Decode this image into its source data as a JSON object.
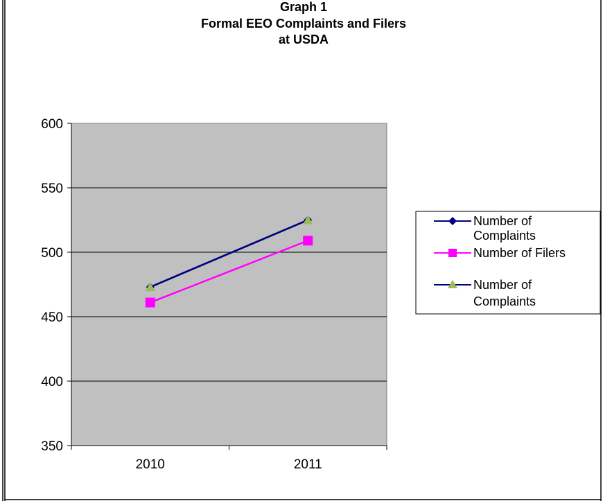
{
  "chart_data": {
    "type": "line",
    "title_lines": [
      "Graph 1",
      "Formal EEO Complaints and Filers",
      "at USDA"
    ],
    "categories": [
      "2010",
      "2011"
    ],
    "ylim": [
      350,
      600
    ],
    "yticks": [
      350,
      400,
      450,
      500,
      550,
      600
    ],
    "grid": true,
    "plot_background": "#c0c0c0",
    "legend_position": "right",
    "series": [
      {
        "name": "Number of Complaints",
        "legend_lines": [
          "Number of",
          "Complaints"
        ],
        "values": [
          473,
          525
        ],
        "color": "#000080",
        "marker": "diamond"
      },
      {
        "name": "Number of Filers",
        "legend_lines": [
          "Number of Filers"
        ],
        "values": [
          461,
          509
        ],
        "color": "#ff00ff",
        "marker": "square"
      },
      {
        "name": "Number of Complaints",
        "legend_lines": [
          "Number of",
          "Complaints"
        ],
        "values": [
          473,
          525
        ],
        "color": "#000080",
        "marker_color": "#9bbb59",
        "marker": "triangle"
      }
    ]
  }
}
